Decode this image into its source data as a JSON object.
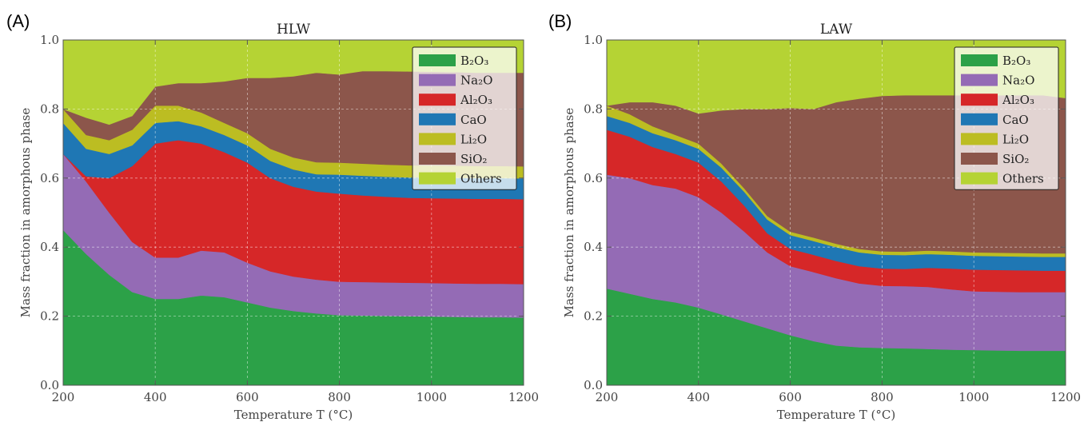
{
  "figure": {
    "legend_items": [
      {
        "key": "B2O3",
        "label": "B₂O₃",
        "color": "#2ca148"
      },
      {
        "key": "Na2O",
        "label": "Na₂O",
        "color": "#946bb5"
      },
      {
        "key": "Al2O3",
        "label": "Al₂O₃",
        "color": "#d62728"
      },
      {
        "key": "CaO",
        "label": "CaO",
        "color": "#1f77b4"
      },
      {
        "key": "Li2O",
        "label": "Li₂O",
        "color": "#bcbd22"
      },
      {
        "key": "SiO2",
        "label": "SiO₂",
        "color": "#8c564b"
      },
      {
        "key": "Others",
        "label": "Others",
        "color": "#b5d334"
      }
    ]
  },
  "chart_data": [
    {
      "type": "area",
      "panel_label": "(A)",
      "title": "HLW",
      "xlabel": "Temperature T (°C)",
      "ylabel": "Mass fraction in amorphous phase",
      "xlim": [
        200,
        1200
      ],
      "ylim": [
        0.0,
        1.0
      ],
      "xticks": [
        "200",
        "400",
        "600",
        "800",
        "1000",
        "1200"
      ],
      "yticks": [
        "0.0",
        "0.2",
        "0.4",
        "0.6",
        "0.8",
        "1.0"
      ],
      "grid": true,
      "stacked": true,
      "legend_position": "top-right",
      "x": [
        200,
        250,
        300,
        350,
        400,
        450,
        500,
        550,
        600,
        650,
        700,
        750,
        800,
        850,
        900,
        950,
        1000,
        1050,
        1100,
        1150,
        1200
      ],
      "series": [
        {
          "name": "B₂O₃",
          "values": [
            0.45,
            0.38,
            0.32,
            0.27,
            0.25,
            0.25,
            0.26,
            0.255,
            0.24,
            0.225,
            0.215,
            0.208,
            0.203,
            0.202,
            0.201,
            0.2,
            0.199,
            0.198,
            0.197,
            0.197,
            0.196
          ]
        },
        {
          "name": "Na₂O",
          "values": [
            0.22,
            0.21,
            0.18,
            0.145,
            0.12,
            0.12,
            0.13,
            0.13,
            0.115,
            0.105,
            0.1,
            0.098,
            0.097,
            0.097,
            0.097,
            0.097,
            0.097,
            0.097,
            0.097,
            0.097,
            0.097
          ]
        },
        {
          "name": "Al₂O₃",
          "values": [
            0.0,
            0.015,
            0.1,
            0.22,
            0.33,
            0.34,
            0.31,
            0.29,
            0.29,
            0.27,
            0.26,
            0.255,
            0.255,
            0.251,
            0.248,
            0.246,
            0.246,
            0.246,
            0.246,
            0.246,
            0.246
          ]
        },
        {
          "name": "CaO",
          "values": [
            0.09,
            0.08,
            0.07,
            0.06,
            0.06,
            0.055,
            0.05,
            0.05,
            0.05,
            0.05,
            0.05,
            0.05,
            0.055,
            0.057,
            0.058,
            0.059,
            0.06,
            0.06,
            0.06,
            0.06,
            0.06
          ]
        },
        {
          "name": "Li₂O",
          "values": [
            0.04,
            0.04,
            0.04,
            0.045,
            0.05,
            0.045,
            0.04,
            0.035,
            0.035,
            0.035,
            0.035,
            0.035,
            0.035,
            0.035,
            0.035,
            0.035,
            0.035,
            0.035,
            0.035,
            0.035,
            0.035
          ]
        },
        {
          "name": "SiO₂",
          "values": [
            0.0,
            0.05,
            0.045,
            0.04,
            0.055,
            0.065,
            0.085,
            0.12,
            0.16,
            0.205,
            0.235,
            0.259,
            0.255,
            0.268,
            0.271,
            0.272,
            0.271,
            0.271,
            0.27,
            0.27,
            0.271
          ]
        },
        {
          "name": "Others",
          "values": [
            0.2,
            0.225,
            0.245,
            0.22,
            0.135,
            0.125,
            0.125,
            0.12,
            0.11,
            0.11,
            0.105,
            0.095,
            0.1,
            0.09,
            0.09,
            0.091,
            0.092,
            0.093,
            0.095,
            0.095,
            0.095
          ]
        }
      ]
    },
    {
      "type": "area",
      "panel_label": "(B)",
      "title": "LAW",
      "xlabel": "Temperature T (°C)",
      "ylabel": "Mass fraction in amorphous phase",
      "xlim": [
        200,
        1200
      ],
      "ylim": [
        0.0,
        1.0
      ],
      "xticks": [
        "200",
        "400",
        "600",
        "800",
        "1000",
        "1200"
      ],
      "yticks": [
        "0.0",
        "0.2",
        "0.4",
        "0.6",
        "0.8",
        "1.0"
      ],
      "grid": true,
      "stacked": true,
      "legend_position": "top-right",
      "x": [
        200,
        250,
        300,
        350,
        400,
        450,
        500,
        550,
        600,
        650,
        700,
        750,
        800,
        850,
        900,
        950,
        1000,
        1050,
        1100,
        1150,
        1200
      ],
      "series": [
        {
          "name": "B₂O₃",
          "values": [
            0.28,
            0.265,
            0.25,
            0.24,
            0.225,
            0.205,
            0.185,
            0.165,
            0.145,
            0.128,
            0.115,
            0.11,
            0.108,
            0.107,
            0.105,
            0.103,
            0.102,
            0.101,
            0.1,
            0.1,
            0.1
          ]
        },
        {
          "name": "Na₂O",
          "values": [
            0.33,
            0.335,
            0.33,
            0.33,
            0.32,
            0.295,
            0.26,
            0.22,
            0.2,
            0.2,
            0.195,
            0.185,
            0.18,
            0.18,
            0.18,
            0.175,
            0.17,
            0.17,
            0.17,
            0.17,
            0.17
          ]
        },
        {
          "name": "Al₂O₃",
          "values": [
            0.13,
            0.12,
            0.11,
            0.1,
            0.1,
            0.09,
            0.075,
            0.055,
            0.05,
            0.05,
            0.05,
            0.05,
            0.05,
            0.05,
            0.055,
            0.06,
            0.063,
            0.063,
            0.063,
            0.062,
            0.062
          ]
        },
        {
          "name": "CaO",
          "values": [
            0.04,
            0.04,
            0.04,
            0.04,
            0.04,
            0.04,
            0.04,
            0.04,
            0.04,
            0.04,
            0.04,
            0.04,
            0.04,
            0.04,
            0.04,
            0.04,
            0.04,
            0.04,
            0.04,
            0.04,
            0.04
          ]
        },
        {
          "name": "Li₂O",
          "values": [
            0.03,
            0.025,
            0.02,
            0.015,
            0.015,
            0.012,
            0.01,
            0.01,
            0.01,
            0.01,
            0.01,
            0.01,
            0.01,
            0.01,
            0.01,
            0.01,
            0.01,
            0.01,
            0.01,
            0.01,
            0.01
          ]
        },
        {
          "name": "SiO₂",
          "values": [
            0.0,
            0.035,
            0.07,
            0.085,
            0.087,
            0.154,
            0.23,
            0.31,
            0.358,
            0.372,
            0.41,
            0.435,
            0.45,
            0.453,
            0.45,
            0.452,
            0.455,
            0.456,
            0.457,
            0.458,
            0.45
          ]
        },
        {
          "name": "Others",
          "values": [
            0.19,
            0.18,
            0.18,
            0.19,
            0.213,
            0.204,
            0.2,
            0.2,
            0.197,
            0.2,
            0.18,
            0.17,
            0.162,
            0.16,
            0.16,
            0.16,
            0.16,
            0.16,
            0.16,
            0.16,
            0.168
          ]
        }
      ]
    }
  ]
}
